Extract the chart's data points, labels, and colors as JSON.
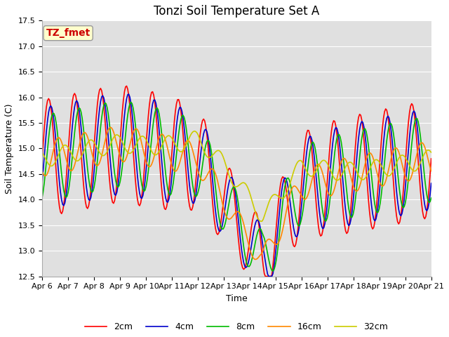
{
  "title": "Tonzi Soil Temperature Set A",
  "xlabel": "Time",
  "ylabel": "Soil Temperature (C)",
  "ylim": [
    12.5,
    17.5
  ],
  "xtick_labels": [
    "Apr 6",
    "Apr 7",
    "Apr 8",
    "Apr 9",
    "Apr 10",
    "Apr 11",
    "Apr 12",
    "Apr 13",
    "Apr 14",
    "Apr 15",
    "Apr 16",
    "Apr 17",
    "Apr 18",
    "Apr 19",
    "Apr 20",
    "Apr 21"
  ],
  "series_colors": [
    "#ff0000",
    "#0000cc",
    "#00bb00",
    "#ff8800",
    "#cccc00"
  ],
  "series_labels": [
    "2cm",
    "4cm",
    "8cm",
    "16cm",
    "32cm"
  ],
  "bg_color": "#e0e0e0",
  "grid_color": "#ffffff",
  "annotation_text": "TZ_fmet",
  "annotation_bg": "#ffffcc",
  "annotation_border": "#999999",
  "annotation_text_color": "#cc0000",
  "title_fontsize": 12,
  "axis_fontsize": 9,
  "tick_fontsize": 8,
  "legend_fontsize": 9,
  "line_width": 1.2
}
